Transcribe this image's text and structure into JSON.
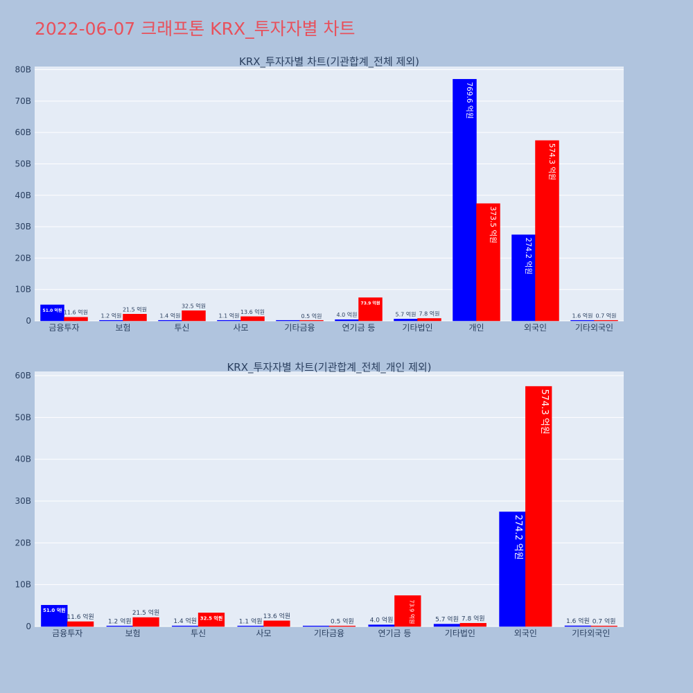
{
  "page": {
    "title": "2022-06-07 크래프톤 KRX_투자자별 차트"
  },
  "colors": {
    "background": "#b0c4de",
    "plot_bg": "#e5ecf6",
    "grid": "#ffffff",
    "series1": "#0000ff",
    "series2": "#ff0000",
    "title": "#e8505b",
    "text": "#2a3f5f"
  },
  "chart_data": [
    {
      "type": "bar",
      "title": "KRX_투자자별 차트(기관합계_전체 제외)",
      "categories": [
        "금융투자",
        "보험",
        "투신",
        "사모",
        "기타금융",
        "연기금 등",
        "기타법인",
        "개인",
        "외국인",
        "기타외국인"
      ],
      "series": [
        {
          "values": [
            5.1,
            0.12,
            0.14,
            0.11,
            0.0,
            0.4,
            0.57,
            76.96,
            27.42,
            0.16
          ],
          "labels": [
            "51.0 억원",
            "1.2 억원",
            "1.4 억원",
            "1.1 억원",
            "",
            "4.0 억원",
            "5.7 억원",
            "769.6 억원",
            "274.2 억원",
            "1.6 억원"
          ]
        },
        {
          "values": [
            1.16,
            2.15,
            3.25,
            1.36,
            0.05,
            7.39,
            0.78,
            37.35,
            57.43,
            0.07
          ],
          "labels": [
            "11.6 억원",
            "21.5 억원",
            "32.5 억원",
            "13.6 억원",
            "0.5 억원",
            "73.9 억원",
            "7.8 억원",
            "373.5 억원",
            "574.3 억원",
            "0.7 억원"
          ]
        }
      ],
      "ylim": [
        0,
        81
      ],
      "yticks": [
        0,
        10,
        20,
        30,
        40,
        50,
        60,
        70,
        80
      ],
      "ytick_labels": [
        "0",
        "10B",
        "20B",
        "30B",
        "40B",
        "50B",
        "60B",
        "70B",
        "80B"
      ],
      "grid": true
    },
    {
      "type": "bar",
      "title": "KRX_투자자별 차트(기관합계_전체_개인 제외)",
      "categories": [
        "금융투자",
        "보험",
        "투신",
        "사모",
        "기타금융",
        "연기금 등",
        "기타법인",
        "외국인",
        "기타외국인"
      ],
      "series": [
        {
          "values": [
            5.1,
            0.12,
            0.14,
            0.11,
            0.0,
            0.4,
            0.57,
            27.42,
            0.16
          ],
          "labels": [
            "51.0 억원",
            "1.2 억원",
            "1.4 억원",
            "1.1 억원",
            "",
            "4.0 억원",
            "5.7 억원",
            "274.2 억원",
            "1.6 억원"
          ]
        },
        {
          "values": [
            1.16,
            2.15,
            3.25,
            1.36,
            0.05,
            7.39,
            0.78,
            57.43,
            0.07
          ],
          "labels": [
            "11.6 억원",
            "21.5 억원",
            "32.5 억원",
            "13.6 억원",
            "0.5 억원",
            "73.9 억원",
            "7.8 억원",
            "574.3 억원",
            "0.7 억원"
          ]
        }
      ],
      "ylim": [
        0,
        61
      ],
      "yticks": [
        0,
        10,
        20,
        30,
        40,
        50,
        60
      ],
      "ytick_labels": [
        "0",
        "10B",
        "20B",
        "30B",
        "40B",
        "50B",
        "60B"
      ],
      "grid": true
    }
  ]
}
